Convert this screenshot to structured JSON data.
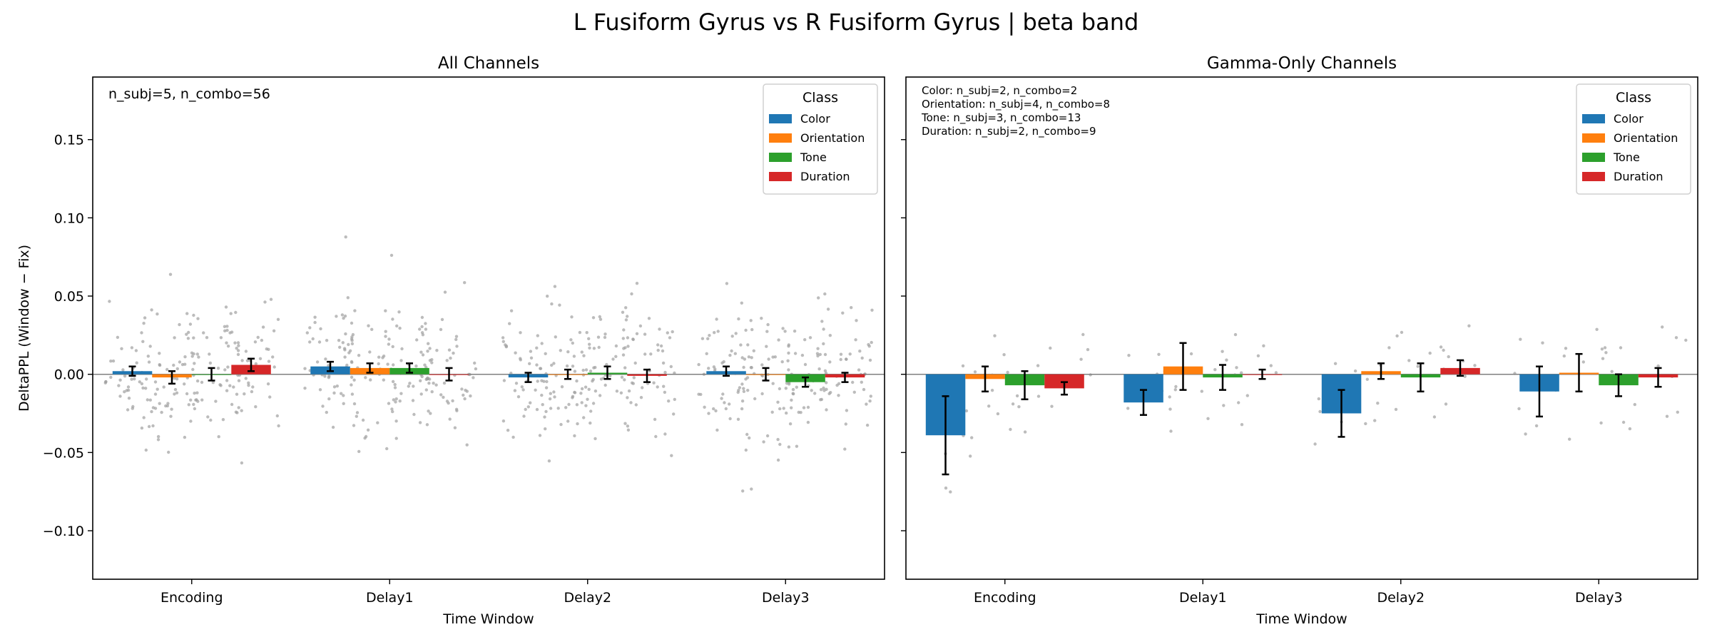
{
  "suptitle": "L Fusiform Gyrus vs R Fusiform Gyrus  |  beta band",
  "colors": {
    "Color": "#1f77b4",
    "Orientation": "#ff7f0e",
    "Tone": "#2ca02c",
    "Duration": "#d62728",
    "scatter": "#a0a0a0",
    "zero_line": "#808080"
  },
  "chart_data": [
    {
      "type": "bar",
      "title": "All Channels",
      "xlabel": "Time Window",
      "ylabel": "DeltaPPL (Window − Fix)",
      "ylim": [
        -0.131,
        0.19
      ],
      "yticks": [
        -0.1,
        -0.05,
        0.0,
        0.05,
        0.1,
        0.15
      ],
      "ytick_labels": [
        "−0.10",
        "−0.05",
        "0.00",
        "0.05",
        "0.10",
        "0.15"
      ],
      "categories": [
        "Encoding",
        "Delay1",
        "Delay2",
        "Delay3"
      ],
      "legend_title": "Class",
      "legend_position": "top-right",
      "annotation": [
        "n_subj=5, n_combo=56"
      ],
      "series": [
        {
          "name": "Color",
          "values": [
            0.002,
            0.005,
            -0.002,
            0.002
          ],
          "errors": [
            0.003,
            0.003,
            0.003,
            0.003
          ]
        },
        {
          "name": "Orientation",
          "values": [
            -0.002,
            0.004,
            0.0,
            0.0
          ],
          "errors": [
            0.004,
            0.003,
            0.003,
            0.004
          ]
        },
        {
          "name": "Tone",
          "values": [
            0.0,
            0.004,
            0.001,
            -0.005
          ],
          "errors": [
            0.004,
            0.003,
            0.004,
            0.003
          ]
        },
        {
          "name": "Duration",
          "values": [
            0.006,
            0.0,
            -0.001,
            -0.002
          ],
          "errors": [
            0.004,
            0.004,
            0.004,
            0.003
          ]
        }
      ]
    },
    {
      "type": "bar",
      "title": "Gamma-Only Channels",
      "xlabel": "Time Window",
      "ylabel": "",
      "ylim": [
        -0.131,
        0.19
      ],
      "yticks": [
        -0.1,
        -0.05,
        0.0,
        0.05,
        0.1,
        0.15
      ],
      "categories": [
        "Encoding",
        "Delay1",
        "Delay2",
        "Delay3"
      ],
      "legend_title": "Class",
      "legend_position": "top-right",
      "annotation": [
        "Color: n_subj=2, n_combo=2",
        "Orientation: n_subj=4, n_combo=8",
        "Tone: n_subj=3, n_combo=13",
        "Duration: n_subj=2, n_combo=9"
      ],
      "series": [
        {
          "name": "Color",
          "values": [
            -0.039,
            -0.018,
            -0.025,
            -0.011
          ],
          "errors": [
            0.025,
            0.008,
            0.015,
            0.016
          ]
        },
        {
          "name": "Orientation",
          "values": [
            -0.003,
            0.005,
            0.002,
            0.001
          ],
          "errors": [
            0.008,
            0.015,
            0.005,
            0.012
          ]
        },
        {
          "name": "Tone",
          "values": [
            -0.007,
            -0.002,
            -0.002,
            -0.007
          ],
          "errors": [
            0.009,
            0.008,
            0.009,
            0.007
          ]
        },
        {
          "name": "Duration",
          "values": [
            -0.009,
            0.0,
            0.004,
            -0.002
          ],
          "errors": [
            0.004,
            0.003,
            0.005,
            0.006
          ]
        }
      ]
    }
  ]
}
